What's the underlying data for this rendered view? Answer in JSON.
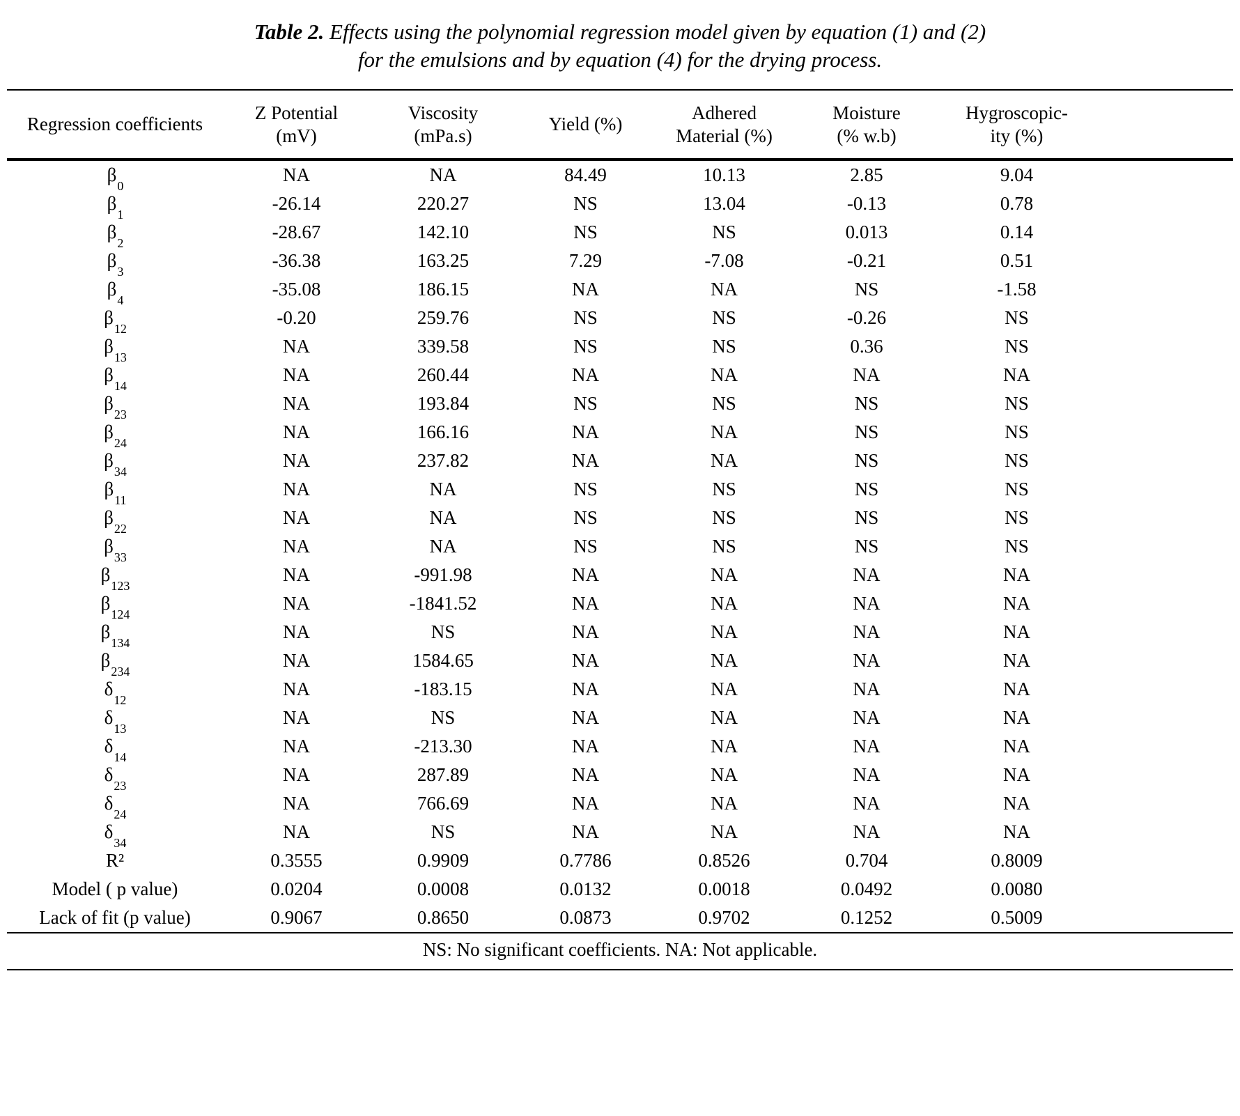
{
  "caption": {
    "label": "Table 2.",
    "line1": "Effects using the polynomial regression model given by equation (1) and (2)",
    "line2": "for the emulsions and by equation (4) for the drying process."
  },
  "table": {
    "header": {
      "col0": "Regression coefficients",
      "columns": [
        {
          "line1": "Z Potential",
          "line2": "(mV)"
        },
        {
          "line1": "Viscosity",
          "line2": "(mPa.s)"
        },
        {
          "line1": "Yield (%)",
          "line2": ""
        },
        {
          "line1": "Adhered",
          "line2": "Material (%)"
        },
        {
          "line1": "Moisture",
          "line2": "(% w.b)"
        },
        {
          "line1": "Hygroscopic-",
          "line2": "ity (%)"
        }
      ]
    },
    "rows": [
      {
        "symbol": "β",
        "sub": "0",
        "values": [
          "NA",
          "NA",
          "84.49",
          "10.13",
          "2.85",
          "9.04"
        ]
      },
      {
        "symbol": "β",
        "sub": "1",
        "values": [
          "-26.14",
          "220.27",
          "NS",
          "13.04",
          "-0.13",
          "0.78"
        ]
      },
      {
        "symbol": "β",
        "sub": "2",
        "values": [
          "-28.67",
          "142.10",
          "NS",
          "NS",
          "0.013",
          "0.14"
        ]
      },
      {
        "symbol": "β",
        "sub": "3",
        "values": [
          "-36.38",
          "163.25",
          "7.29",
          "-7.08",
          "-0.21",
          "0.51"
        ]
      },
      {
        "symbol": "β",
        "sub": "4",
        "values": [
          "-35.08",
          "186.15",
          "NA",
          "NA",
          "NS",
          "-1.58"
        ]
      },
      {
        "symbol": "β",
        "sub": "12",
        "values": [
          "-0.20",
          "259.76",
          "NS",
          "NS",
          "-0.26",
          "NS"
        ]
      },
      {
        "symbol": "β",
        "sub": "13",
        "values": [
          "NA",
          "339.58",
          "NS",
          "NS",
          "0.36",
          "NS"
        ]
      },
      {
        "symbol": "β",
        "sub": "14",
        "values": [
          "NA",
          "260.44",
          "NA",
          "NA",
          "NA",
          "NA"
        ]
      },
      {
        "symbol": "β",
        "sub": "23",
        "values": [
          "NA",
          "193.84",
          "NS",
          "NS",
          "NS",
          "NS"
        ]
      },
      {
        "symbol": "β",
        "sub": "24",
        "values": [
          "NA",
          "166.16",
          "NA",
          "NA",
          "NS",
          "NS"
        ]
      },
      {
        "symbol": "β",
        "sub": "34",
        "values": [
          "NA",
          "237.82",
          "NA",
          "NA",
          "NS",
          "NS"
        ]
      },
      {
        "symbol": "β",
        "sub": "11",
        "values": [
          "NA",
          "NA",
          "NS",
          "NS",
          "NS",
          "NS"
        ]
      },
      {
        "symbol": "β",
        "sub": "22",
        "values": [
          "NA",
          "NA",
          "NS",
          "NS",
          "NS",
          "NS"
        ]
      },
      {
        "symbol": "β",
        "sub": "33",
        "values": [
          "NA",
          "NA",
          "NS",
          "NS",
          "NS",
          "NS"
        ]
      },
      {
        "symbol": "β",
        "sub": "123",
        "values": [
          "NA",
          "-991.98",
          "NA",
          "NA",
          "NA",
          "NA"
        ]
      },
      {
        "symbol": "β",
        "sub": "124",
        "values": [
          "NA",
          "-1841.52",
          "NA",
          "NA",
          "NA",
          "NA"
        ]
      },
      {
        "symbol": "β",
        "sub": "134",
        "values": [
          "NA",
          "NS",
          "NA",
          "NA",
          "NA",
          "NA"
        ]
      },
      {
        "symbol": "β",
        "sub": "234",
        "values": [
          "NA",
          "1584.65",
          "NA",
          "NA",
          "NA",
          "NA"
        ]
      },
      {
        "symbol": "δ",
        "sub": "12",
        "values": [
          "NA",
          "-183.15",
          "NA",
          "NA",
          "NA",
          "NA"
        ]
      },
      {
        "symbol": "δ",
        "sub": "13",
        "values": [
          "NA",
          "NS",
          "NA",
          "NA",
          "NA",
          "NA"
        ]
      },
      {
        "symbol": "δ",
        "sub": "14",
        "values": [
          "NA",
          "-213.30",
          "NA",
          "NA",
          "NA",
          "NA"
        ]
      },
      {
        "symbol": "δ",
        "sub": "23",
        "values": [
          "NA",
          "287.89",
          "NA",
          "NA",
          "NA",
          "NA"
        ]
      },
      {
        "symbol": "δ",
        "sub": "24",
        "values": [
          "NA",
          "766.69",
          "NA",
          "NA",
          "NA",
          "NA"
        ]
      },
      {
        "symbol": "δ",
        "sub": "34",
        "values": [
          "NA",
          "NS",
          "NA",
          "NA",
          "NA",
          "NA"
        ]
      },
      {
        "symbol": "R²",
        "sub": "",
        "values": [
          "0.3555",
          "0.9909",
          "0.7786",
          "0.8526",
          "0.704",
          "0.8009"
        ]
      },
      {
        "symbol": "Model ( p value)",
        "sub": "",
        "values": [
          "0.0204",
          "0.0008",
          "0.0132",
          "0.0018",
          "0.0492",
          "0.0080"
        ]
      },
      {
        "symbol": "Lack of fit (p value)",
        "sub": "",
        "values": [
          "0.9067",
          "0.8650",
          "0.0873",
          "0.9702",
          "0.1252",
          "0.5009"
        ]
      }
    ]
  },
  "footnote": "NS: No significant coefficients. NA: Not applicable."
}
